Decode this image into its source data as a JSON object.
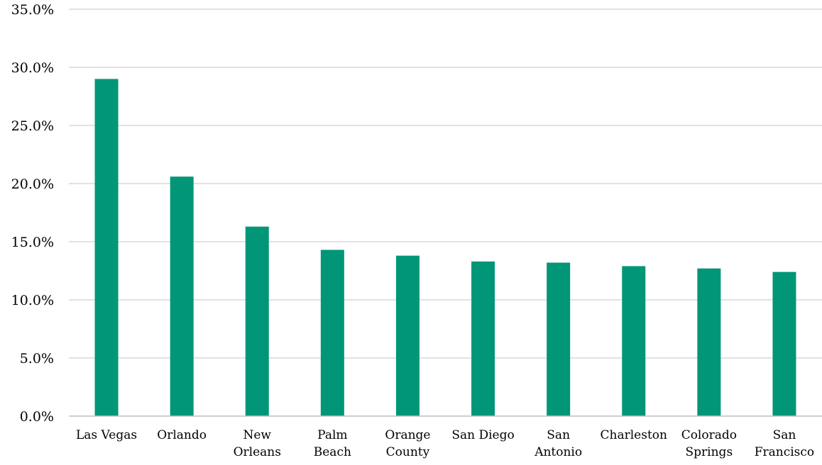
{
  "chart_data": {
    "type": "bar",
    "title": "",
    "xlabel": "",
    "ylabel": "",
    "categories": [
      "Las Vegas",
      "Orlando",
      "New Orleans",
      "Palm Beach",
      "Orange County",
      "San Diego",
      "San Antonio",
      "Charleston",
      "Colorado Springs",
      "San Francisco"
    ],
    "category_label_lines": [
      [
        "Las Vegas"
      ],
      [
        "Orlando"
      ],
      [
        "New",
        "Orleans"
      ],
      [
        "Palm",
        "Beach"
      ],
      [
        "Orange",
        "County"
      ],
      [
        "San Diego"
      ],
      [
        "San",
        "Antonio"
      ],
      [
        "Charleston"
      ],
      [
        "Colorado",
        "Springs"
      ],
      [
        "San",
        "Francisco"
      ]
    ],
    "values": [
      29.0,
      20.6,
      16.3,
      14.3,
      13.8,
      13.3,
      13.2,
      12.9,
      12.7,
      12.4
    ],
    "ylim": [
      0,
      35
    ],
    "yticks": [
      0,
      5,
      10,
      15,
      20,
      25,
      30,
      35
    ],
    "ytick_labels": [
      "0.0%",
      "5.0%",
      "10.0%",
      "15.0%",
      "20.0%",
      "25.0%",
      "30.0%",
      "35.0%"
    ],
    "grid": true,
    "legend": "none",
    "colors": {
      "bar": "#009677",
      "grid": "#d9d9d9",
      "axis": "#bfbfbf"
    }
  }
}
